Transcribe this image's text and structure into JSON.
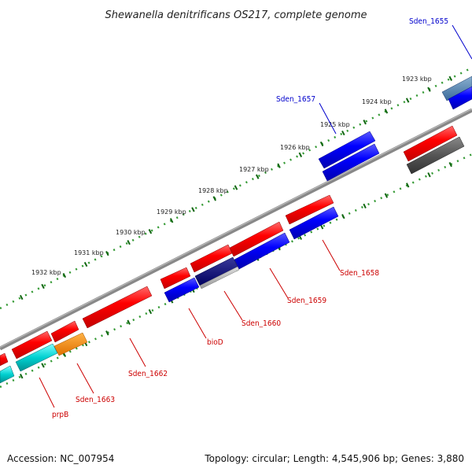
{
  "title": "Shewanella denitrificans OS217, complete genome",
  "footer": {
    "accession": "Accession: NC_007954",
    "summary": "Topology: circular; Length: 4,545,906 bp; Genes: 3,880"
  },
  "ticks": [
    "1923 kbp",
    "1924 kbp",
    "1925 kbp",
    "1926 kbp",
    "1927 kbp",
    "1928 kbp",
    "1929 kbp",
    "1930 kbp",
    "1931 kbp",
    "1932 kbp"
  ],
  "colors": {
    "forward": "#ff0000",
    "reverse": "#0000ff",
    "backbone": "#888888",
    "ruler_dots": "#339933",
    "ruler_ticks": "#116611",
    "forward_label": "#cc0000",
    "reverse_label": "#0000cc"
  },
  "genes": [
    {
      "label": "Sden_1655",
      "strand": "reverse",
      "color": "#0000ff",
      "lane": "inner"
    },
    {
      "label": "Sden_1657",
      "strand": "reverse",
      "color": "#0000ff",
      "lane": "inner"
    },
    {
      "label": "Sden_1658",
      "strand": "forward",
      "color": "#ff0000",
      "lane": "outer"
    },
    {
      "label": "Sden_1659",
      "strand": "forward",
      "color": "#0000ff",
      "lane": "outer"
    },
    {
      "label": "Sden_1660",
      "strand": "forward",
      "color": "#999999",
      "lane": "outer"
    },
    {
      "label": "bioD",
      "strand": "forward",
      "color": "#0000ff",
      "lane": "outer"
    },
    {
      "label": "Sden_1662",
      "strand": "forward",
      "color": "#ff0000",
      "lane": "outer"
    },
    {
      "label": "Sden_1663",
      "strand": "forward",
      "color": "#ff8c00",
      "lane": "outer"
    },
    {
      "label": "prpB",
      "strand": "forward",
      "color": "#00cccc",
      "lane": "outer"
    }
  ]
}
